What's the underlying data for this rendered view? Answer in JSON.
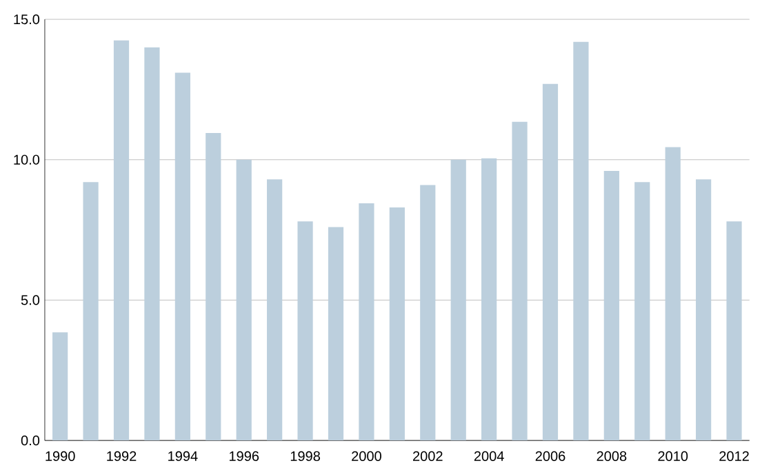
{
  "chart_data": {
    "type": "bar",
    "categories": [
      "1990",
      null,
      "1992",
      null,
      "1994",
      null,
      "1996",
      null,
      "1998",
      null,
      "2000",
      null,
      "2002",
      null,
      "2004",
      null,
      "2006",
      null,
      "2008",
      null,
      "2010",
      null,
      "2012"
    ],
    "values": [
      3.85,
      9.2,
      14.25,
      14.0,
      13.1,
      10.95,
      10.0,
      9.3,
      7.8,
      7.6,
      8.45,
      8.3,
      9.1,
      10.0,
      10.05,
      11.35,
      12.7,
      14.2,
      9.6,
      9.2,
      10.45,
      9.3,
      7.8
    ],
    "color": "#bccfdd",
    "ylim": [
      0,
      15
    ],
    "yticks": [
      {
        "value": 0,
        "label": "0.0"
      },
      {
        "value": 5,
        "label": "5.0"
      },
      {
        "value": 10,
        "label": "10.0"
      },
      {
        "value": 15,
        "label": "15.0"
      }
    ],
    "grid": "y"
  }
}
